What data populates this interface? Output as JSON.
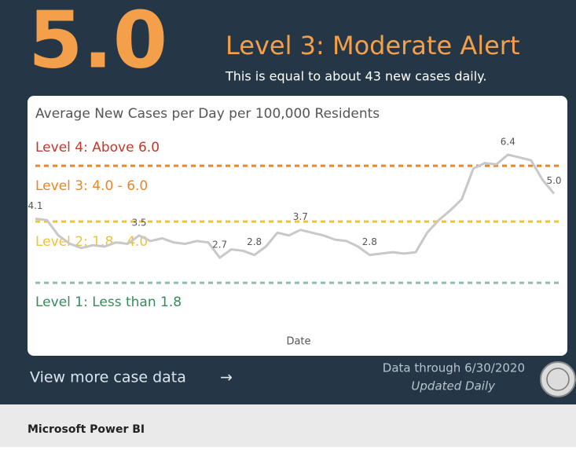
{
  "header": {
    "value": "5.0",
    "level": "Level 3: Moderate Alert",
    "subtitle": "This is equal to about 43 new cases daily."
  },
  "chart_data": {
    "type": "line",
    "title": "Average New Cases per Day per 100,000 Residents",
    "x_label": "Date",
    "categories": [
      null,
      null,
      null,
      null,
      null,
      null,
      null,
      null,
      null,
      null,
      null,
      null,
      null,
      null,
      null,
      null,
      null,
      null,
      null,
      null,
      null,
      null,
      null,
      null,
      null,
      null,
      null,
      null,
      null,
      null,
      null,
      null,
      null,
      null,
      null,
      null,
      null,
      null,
      null,
      null,
      null,
      null,
      null,
      null,
      null,
      null
    ],
    "values": [
      4.1,
      4.05,
      3.5,
      3.2,
      3.05,
      3.15,
      3.1,
      3.25,
      3.2,
      3.5,
      3.3,
      3.4,
      3.25,
      3.2,
      3.3,
      3.25,
      2.7,
      3.0,
      2.95,
      2.8,
      3.1,
      3.6,
      3.5,
      3.7,
      3.6,
      3.5,
      3.35,
      3.3,
      3.1,
      2.8,
      2.85,
      2.9,
      2.85,
      2.9,
      3.6,
      4.05,
      4.4,
      4.8,
      5.9,
      6.1,
      6.05,
      6.4,
      6.3,
      6.2,
      5.5,
      5.0
    ],
    "value_labels": [
      "4.1",
      null,
      null,
      null,
      null,
      null,
      null,
      null,
      null,
      "3.5",
      null,
      null,
      null,
      null,
      null,
      null,
      "2.7",
      null,
      null,
      "2.8",
      null,
      null,
      null,
      "3.7",
      null,
      null,
      null,
      null,
      null,
      "2.8",
      null,
      null,
      null,
      null,
      null,
      null,
      null,
      null,
      null,
      null,
      null,
      "6.4",
      null,
      null,
      null,
      "5.0"
    ],
    "color": "#c8c8c8",
    "ylim": [
      0,
      7.3
    ],
    "thresholds": [
      {
        "value": 6.0,
        "color": "#e8862a"
      },
      {
        "value": 4.0,
        "color": "#f0c23a"
      },
      {
        "value": 1.8,
        "color": "#8fbcab"
      }
    ],
    "level_labels": [
      {
        "text": "Level 4: Above 6.0",
        "color": "#c0392b"
      },
      {
        "text": "Level 3: 4.0 - 6.0",
        "color": "#e8862a"
      },
      {
        "text": "Level 2: 1.8 - 4.0",
        "color": "#f0c23a"
      },
      {
        "text": "Level 1: Less than 1.8",
        "color": "#3a8a5a"
      }
    ]
  },
  "footer": {
    "link": "View more case data",
    "link_arrow": "→",
    "data_through": "Data through 6/30/2020",
    "updated": "Updated Daily",
    "brand": "Microsoft Power BI"
  }
}
